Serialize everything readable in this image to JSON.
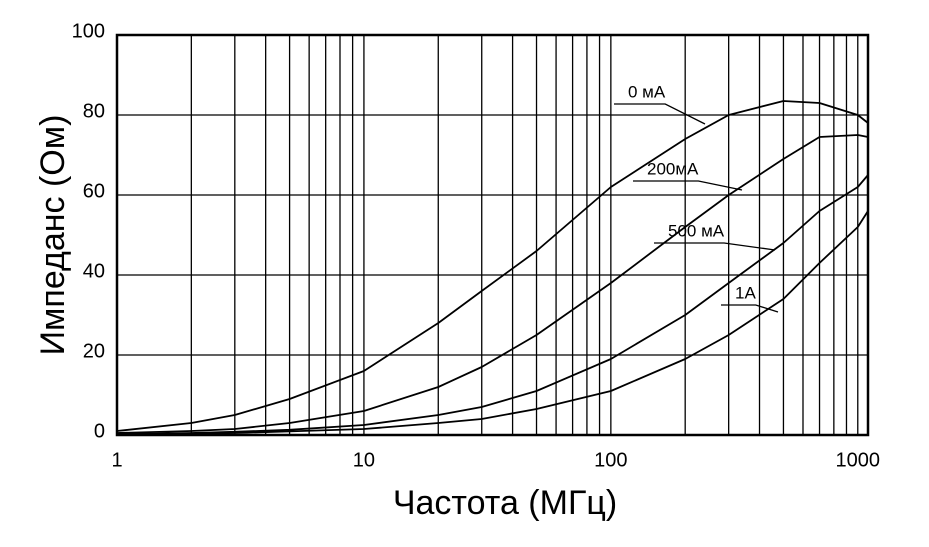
{
  "chart_data": {
    "type": "line",
    "x_label": "Частота (МГц)",
    "y_label": "Импеданс (Ом)",
    "x": [
      1,
      2,
      3,
      5,
      10,
      20,
      30,
      50,
      100,
      200,
      300,
      500,
      700,
      1000,
      1100
    ],
    "series": [
      {
        "name": "0 мА",
        "color": "#000000",
        "values": [
          1,
          3,
          5,
          9,
          16,
          28,
          36,
          46,
          62,
          74,
          80,
          83.5,
          83,
          80,
          78
        ]
      },
      {
        "name": "200мА",
        "color": "#000000",
        "values": [
          0.5,
          1,
          1.5,
          3,
          6,
          12,
          17,
          25,
          38,
          52,
          60,
          69,
          74.5,
          75,
          74.5
        ]
      },
      {
        "name": "500 мА",
        "color": "#000000",
        "values": [
          0.2,
          0.5,
          0.8,
          1.3,
          2.5,
          5,
          7,
          11,
          19,
          30,
          38,
          48,
          56,
          62,
          65
        ]
      },
      {
        "name": "1A",
        "color": "#000000",
        "values": [
          0.1,
          0.3,
          0.5,
          0.9,
          1.5,
          3,
          4,
          6.5,
          11,
          19,
          25,
          34,
          43,
          52,
          56
        ]
      }
    ],
    "xscale": "log",
    "xlim": [
      1,
      1100
    ],
    "xticks": [
      1,
      10,
      100,
      1000
    ],
    "xminorticks": [
      2,
      3,
      4,
      5,
      6,
      7,
      8,
      9,
      20,
      30,
      40,
      50,
      60,
      70,
      80,
      90,
      200,
      300,
      400,
      500,
      600,
      700,
      800,
      900
    ],
    "ylim": [
      0,
      100
    ],
    "yticks": [
      0,
      20,
      40,
      60,
      80,
      100
    ],
    "grid": true
  }
}
